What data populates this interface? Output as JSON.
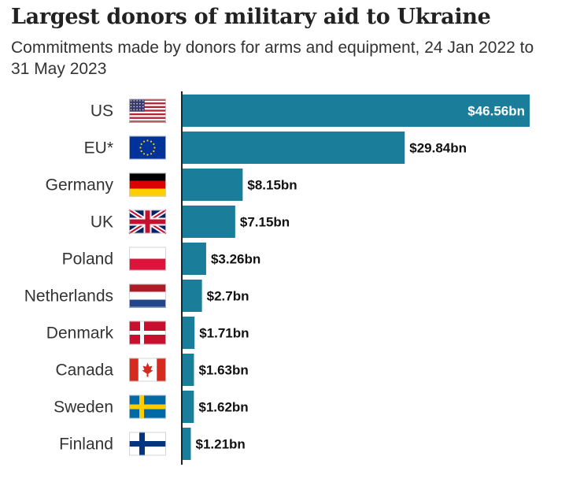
{
  "colors": {
    "bar": "#1a7e9a",
    "axis": "#222222"
  },
  "chart_data": {
    "type": "bar",
    "orientation": "horizontal",
    "title": "Largest donors of military aid to Ukraine",
    "subtitle": "Commitments made by donors for arms and equipment, 24 Jan 2022 to 31 May 2023",
    "xlabel": "",
    "ylabel": "",
    "unit": "bn USD",
    "xlim": [
      0,
      46.56
    ],
    "grid": false,
    "categories": [
      "US",
      "EU*",
      "Germany",
      "UK",
      "Poland",
      "Netherlands",
      "Denmark",
      "Canada",
      "Sweden",
      "Finland"
    ],
    "values": [
      46.56,
      29.84,
      8.15,
      7.15,
      3.26,
      2.7,
      1.71,
      1.63,
      1.62,
      1.21
    ],
    "value_labels": [
      "$46.56bn",
      "$29.84bn",
      "$8.15bn",
      "$7.15bn",
      "$3.26bn",
      "$2.7bn",
      "$1.71bn",
      "$1.63bn",
      "$1.62bn",
      "$1.21bn"
    ],
    "flag_icons": [
      "us-flag-icon",
      "eu-flag-icon",
      "germany-flag-icon",
      "uk-flag-icon",
      "poland-flag-icon",
      "netherlands-flag-icon",
      "denmark-flag-icon",
      "canada-flag-icon",
      "sweden-flag-icon",
      "finland-flag-icon"
    ]
  }
}
